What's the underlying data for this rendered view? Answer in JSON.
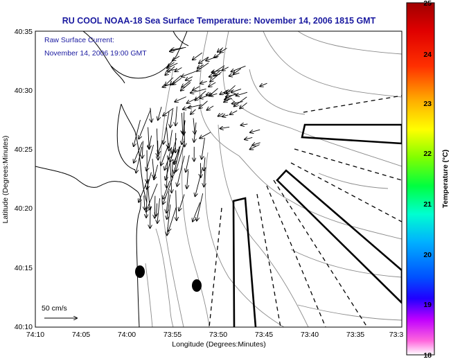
{
  "title": "RU COOL  NOAA-18  Sea Surface Temperature:  November 14, 2006 1815 GMT",
  "current_note": {
    "line1": "Raw Surface Current:",
    "line2": "November 14, 2006 19:00 GMT"
  },
  "x_axis": {
    "label": "Longitude (Degrees:Minutes)",
    "ticks": [
      "74:10",
      "74:05",
      "74:00",
      "73:55",
      "73:50",
      "73:45",
      "73:40",
      "73:35",
      "73:3"
    ]
  },
  "y_axis": {
    "label": "Latitude (Degrees:Minutes)",
    "ticks": [
      "40:35",
      "40:30",
      "40:25",
      "40:20",
      "40:15",
      "40:10"
    ]
  },
  "colorbar": {
    "label": "Temperature (°C)",
    "ticks": [
      "25",
      "24",
      "23",
      "22",
      "21",
      "20",
      "19",
      "18"
    ],
    "colors": [
      "#ff66cc",
      "#c000ff",
      "#0000ff",
      "#0088ff",
      "#00e0ff",
      "#00ff80",
      "#40ff00",
      "#c8ff00",
      "#ffff00",
      "#ffaa00",
      "#ff4000",
      "#ff0000",
      "#c00000",
      "#800000"
    ]
  },
  "scale_label": "50 cm/s"
}
